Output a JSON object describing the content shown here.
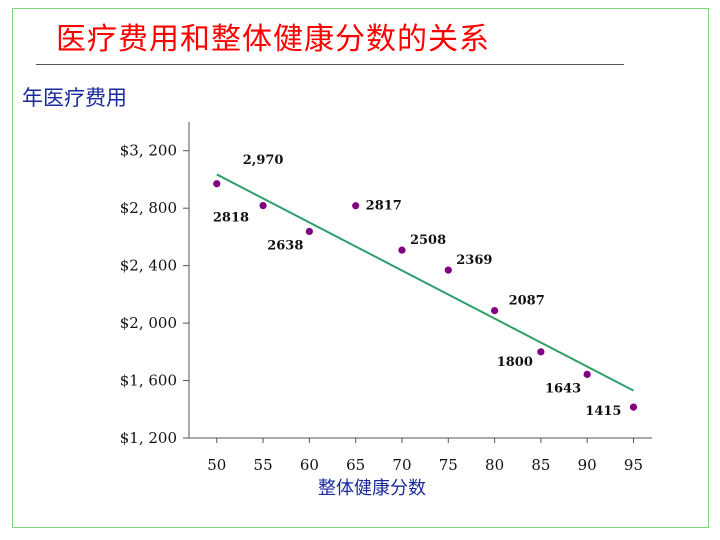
{
  "slide": {
    "title": "医疗费用和整体健康分数的关系"
  },
  "chart_data": {
    "type": "scatter",
    "title": "医疗费用和整体健康分数的关系",
    "xlabel": "整体健康分数",
    "ylabel": "年医疗费用",
    "xlim": [
      47,
      97
    ],
    "ylim": [
      1200,
      3400
    ],
    "x_ticks": [
      50,
      55,
      60,
      65,
      70,
      75,
      80,
      85,
      90,
      95
    ],
    "y_ticks": [
      1200,
      1600,
      2000,
      2400,
      2800,
      3200
    ],
    "y_tick_labels": [
      "$1, 200",
      "$1, 600",
      "$2, 000",
      "$2, 400",
      "$2, 800",
      "$3, 200"
    ],
    "grid": false,
    "points": [
      {
        "x": 50,
        "y": 2970,
        "label": "2,970"
      },
      {
        "x": 55,
        "y": 2818,
        "label": "2818"
      },
      {
        "x": 60,
        "y": 2638,
        "label": "2638"
      },
      {
        "x": 65,
        "y": 2817,
        "label": "2817"
      },
      {
        "x": 70,
        "y": 2508,
        "label": "2508"
      },
      {
        "x": 75,
        "y": 2369,
        "label": "2369"
      },
      {
        "x": 80,
        "y": 2087,
        "label": "2087"
      },
      {
        "x": 85,
        "y": 1800,
        "label": "1800"
      },
      {
        "x": 90,
        "y": 1643,
        "label": "1643"
      },
      {
        "x": 95,
        "y": 1415,
        "label": "1415"
      }
    ],
    "trendline": {
      "x": [
        50,
        95
      ],
      "y": [
        3035,
        1530
      ]
    },
    "colors": {
      "points": "#800080",
      "trendline": "#2e9e6a",
      "axes": "#555555"
    }
  }
}
